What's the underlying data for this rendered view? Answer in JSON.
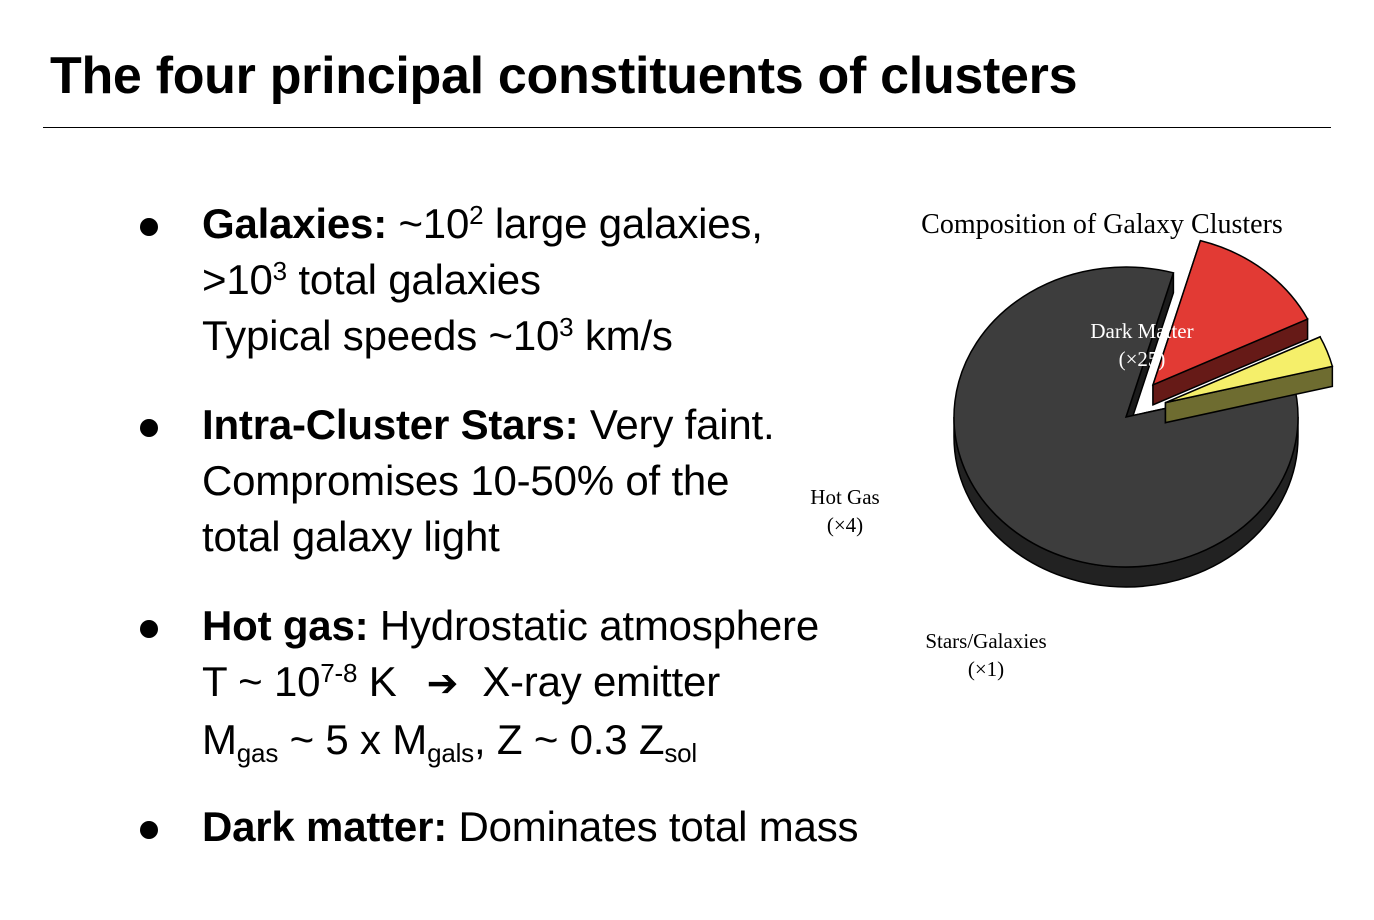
{
  "slide": {
    "title": "The four principal constituents of clusters"
  },
  "bullets": {
    "galaxies": {
      "label": "Galaxies:",
      "l1_pre": " ~10",
      "l1_sup": "2",
      "l1_post": " large galaxies,",
      "l2_pre": ">10",
      "l2_sup": "3",
      "l2_post": " total galaxies",
      "l3_pre": "Typical speeds ~10",
      "l3_sup": "3",
      "l3_post": " km/s"
    },
    "stars": {
      "label": "Intra-Cluster Stars:",
      "l1_post": " Very faint.",
      "l2": "Compromises 10-50% of the",
      "l3": "total galaxy light"
    },
    "gas": {
      "label": "Hot gas:",
      "l1_post": " Hydrostatic atmosphere",
      "l2_pre": "T ~ 10",
      "l2_sup": "7-8",
      "l2_mid": " K",
      "l2_arrow": "➔",
      "l2_post": "X-ray emitter",
      "l3_m1": "M",
      "l3_sub1": "gas",
      "l3_mid": " ~ 5 x M",
      "l3_sub2": "gals",
      "l3_mid2": ", Z ~ 0.3 Z",
      "l3_sub3": "sol"
    },
    "dm": {
      "label": "Dark matter:",
      "l1_post": " Dominates total mass"
    }
  },
  "chart_data": {
    "type": "pie",
    "title": "Composition of Galaxy Clusters",
    "slices": [
      {
        "label": "Dark Matter",
        "value_label": "(×25)",
        "value": 25,
        "color": "#3d3d3d"
      },
      {
        "label": "Hot Gas",
        "value_label": "(×4)",
        "value": 4,
        "color": "#e23a34"
      },
      {
        "label": "Stars/Galaxies",
        "value_label": "(×1)",
        "value": 1,
        "color": "#f5ef6a"
      }
    ],
    "exploded": [
      "Hot Gas",
      "Stars/Galaxies"
    ],
    "style": "3d-exploded"
  }
}
